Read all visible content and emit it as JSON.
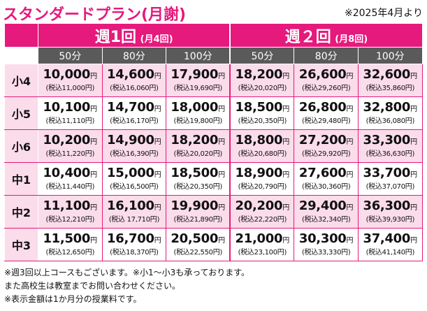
{
  "title": "スタンダードプラン(月謝)",
  "as_of": "※2025年4月より",
  "groups": [
    {
      "name": "週1回",
      "detail": "(月4回)"
    },
    {
      "name": "週２回",
      "detail": "(月8回)"
    }
  ],
  "durations": [
    "50分",
    "80分",
    "100分",
    "50分",
    "80分",
    "100分"
  ],
  "yen_unit": "円",
  "rows": [
    {
      "grade": "小4",
      "cells": [
        {
          "price": "10,000",
          "tax": "(税込11,000円)"
        },
        {
          "price": "14,600",
          "tax": "(税込16,060円)"
        },
        {
          "price": "17,900",
          "tax": "(税込19,690円)"
        },
        {
          "price": "18,200",
          "tax": "(税込20,020円)"
        },
        {
          "price": "26,600",
          "tax": "(税込29,260円)"
        },
        {
          "price": "32,600",
          "tax": "(税込35,860円)"
        }
      ]
    },
    {
      "grade": "小5",
      "cells": [
        {
          "price": "10,100",
          "tax": "(税込11,110円)"
        },
        {
          "price": "14,700",
          "tax": "(税込16,170円)"
        },
        {
          "price": "18,000",
          "tax": "(税込19,800円)"
        },
        {
          "price": "18,500",
          "tax": "(税込20,350円)"
        },
        {
          "price": "26,800",
          "tax": "(税込29,480円)"
        },
        {
          "price": "32,800",
          "tax": "(税込36,080円)"
        }
      ]
    },
    {
      "grade": "小6",
      "cells": [
        {
          "price": "10,200",
          "tax": "(税込11,220円)"
        },
        {
          "price": "14,900",
          "tax": "(税込16,390円)"
        },
        {
          "price": "18,200",
          "tax": "(税込20,020円)"
        },
        {
          "price": "18,800",
          "tax": "(税込20,680円)"
        },
        {
          "price": "27,200",
          "tax": "(税込29,920円)"
        },
        {
          "price": "33,300",
          "tax": "(税込36,630円)"
        }
      ]
    },
    {
      "grade": "中1",
      "cells": [
        {
          "price": "10,400",
          "tax": "(税込11,440円)"
        },
        {
          "price": "15,000",
          "tax": "(税込16,500円)"
        },
        {
          "price": "18,500",
          "tax": "(税込20,350円)"
        },
        {
          "price": "18,900",
          "tax": "(税込20,790円)"
        },
        {
          "price": "27,600",
          "tax": "(税込30,360円)"
        },
        {
          "price": "33,700",
          "tax": "(税込37,070円)"
        }
      ]
    },
    {
      "grade": "中2",
      "cells": [
        {
          "price": "11,100",
          "tax": "(税込12,210円)"
        },
        {
          "price": "16,100",
          "tax": "(税込 17,710円)"
        },
        {
          "price": "19,900",
          "tax": "(税込21,890円)"
        },
        {
          "price": "20,200",
          "tax": "(税込22,220円)"
        },
        {
          "price": "29,400",
          "tax": "(税込32,340円)"
        },
        {
          "price": "36,300",
          "tax": "(税込39,930円)"
        }
      ]
    },
    {
      "grade": "中3",
      "cells": [
        {
          "price": "11,500",
          "tax": "(税込12,650円)"
        },
        {
          "price": "16,700",
          "tax": "(税込18,370円)"
        },
        {
          "price": "20,500",
          "tax": "(税込22,550円)"
        },
        {
          "price": "21,000",
          "tax": "(税込23,100円)"
        },
        {
          "price": "30,300",
          "tax": "(税込33,330円)"
        },
        {
          "price": "37,400",
          "tax": "(税込41,140円)"
        }
      ]
    }
  ],
  "notes": [
    "※週3回以上コースもございます。※小1～小3も承っております。",
    "また高校生は教室までお問い合わせください。",
    "※表示金額は1か月分の授業料です。"
  ],
  "colors": {
    "accent": "#e6197d",
    "row_tint": "#fbdcea",
    "duration_header": "#5a5a5a"
  }
}
